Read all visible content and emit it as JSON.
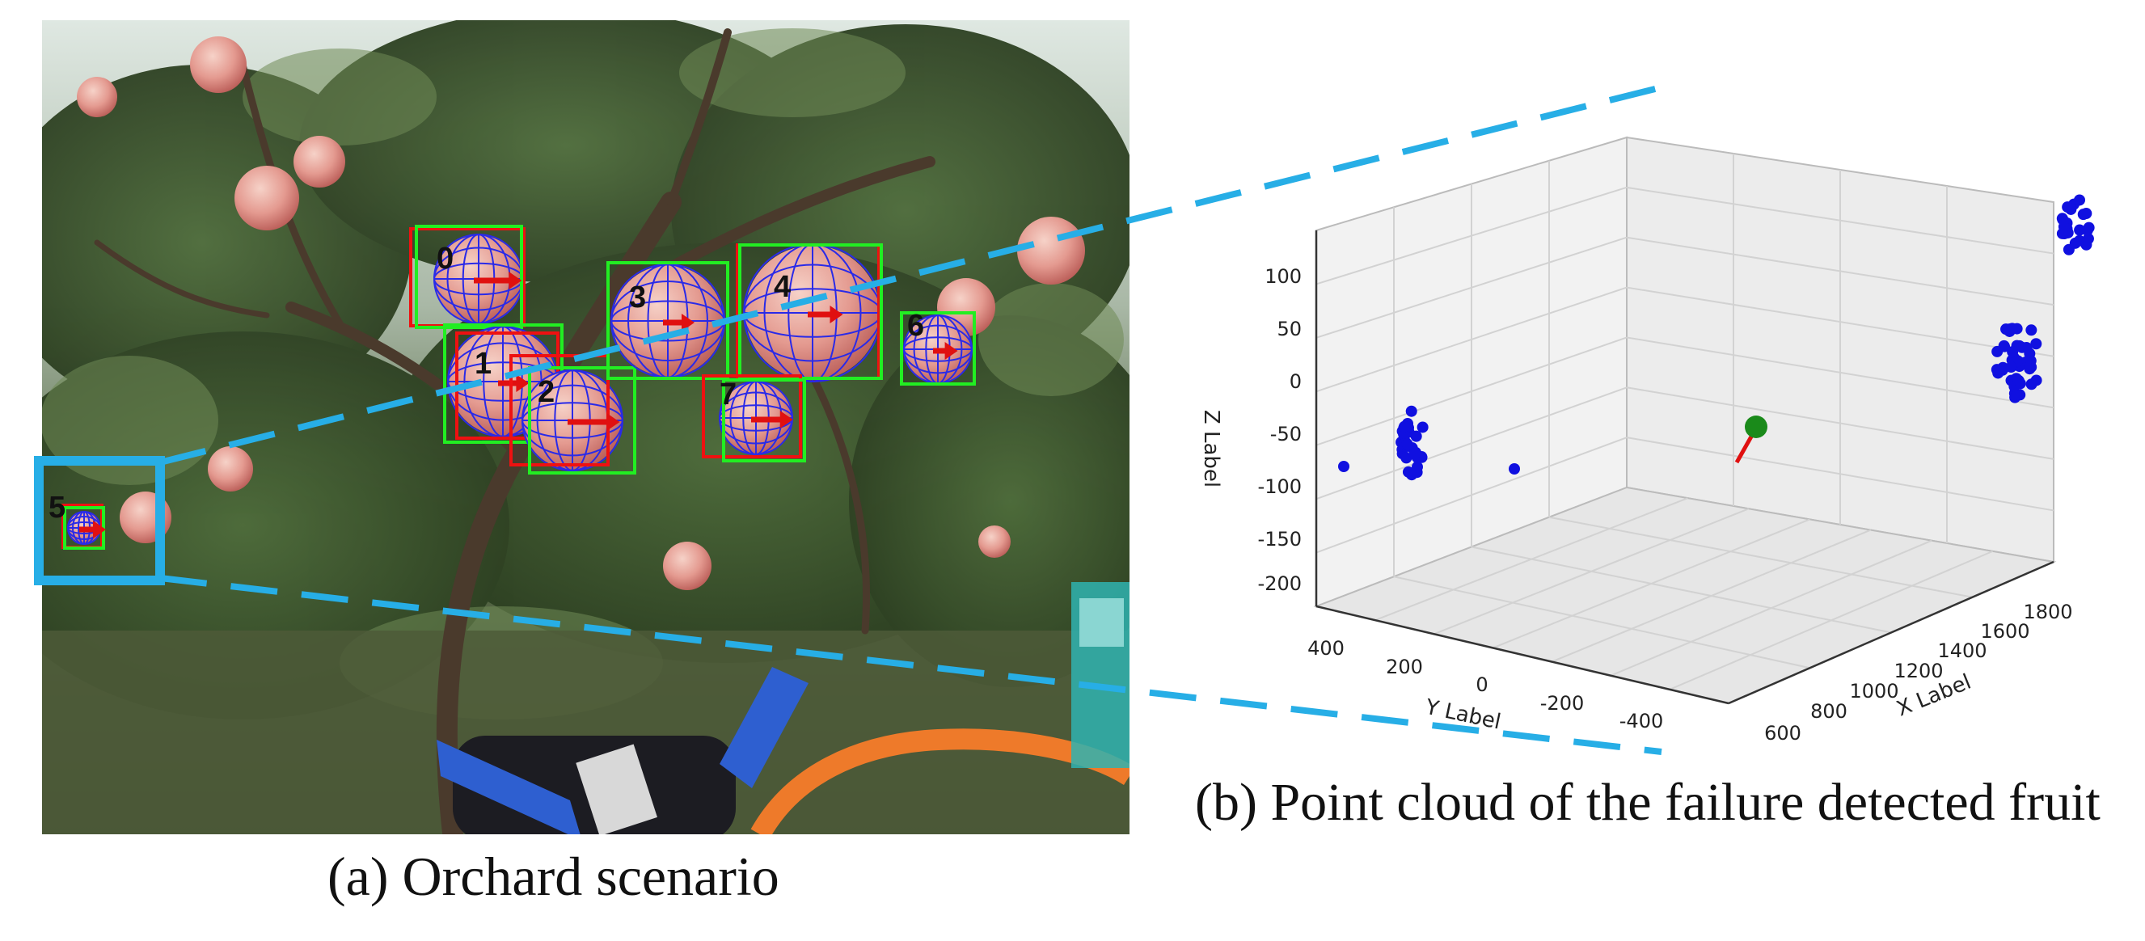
{
  "panel_a": {
    "caption": "(a) Orchard scenario",
    "detections": [
      {
        "id": "0"
      },
      {
        "id": "1"
      },
      {
        "id": "2"
      },
      {
        "id": "3"
      },
      {
        "id": "4"
      },
      {
        "id": "5"
      },
      {
        "id": "6"
      },
      {
        "id": "7"
      }
    ]
  },
  "panel_b": {
    "caption": "(b) Point cloud of the failure detected fruit",
    "xlabel": "X Label",
    "ylabel": "Y Label",
    "zlabel": "Z Label",
    "z_ticks": [
      "100",
      "50",
      "0",
      "-50",
      "-100",
      "-150",
      "-200"
    ],
    "y_ticks": [
      "400",
      "200",
      "0",
      "-200",
      "-400"
    ],
    "x_ticks": [
      "600",
      "800",
      "1000",
      "1200",
      "1400",
      "1600",
      "1800"
    ]
  },
  "colors": {
    "highlight": "#27aee6",
    "point_cloud": "#1010e0",
    "fruit_center": "#1a8a1a",
    "direction_arrow": "#e01010",
    "detection_box": "#22ee22",
    "raw_box": "#ee1111",
    "sphere_wire": "#2a2ae8"
  }
}
